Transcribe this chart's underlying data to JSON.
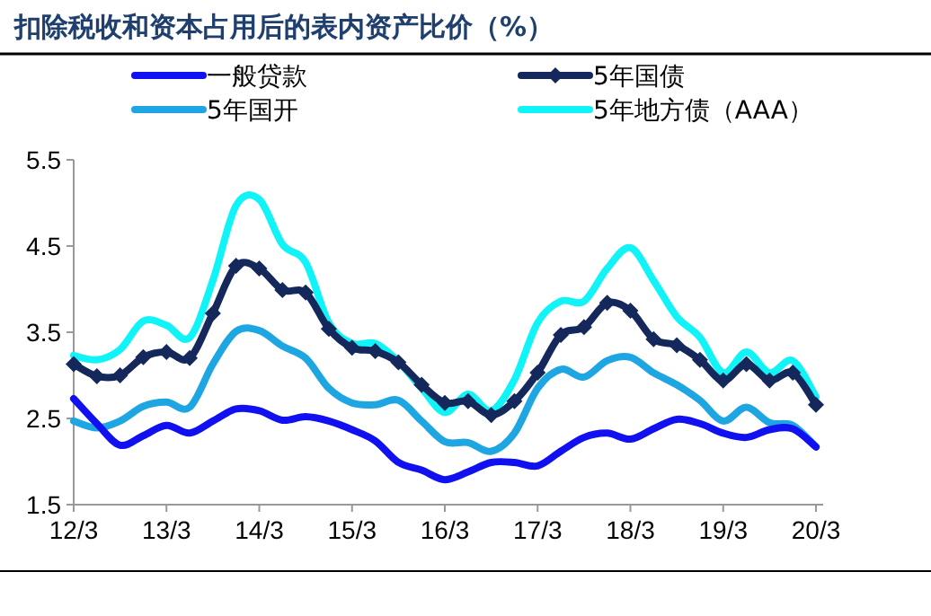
{
  "chart_data": {
    "type": "line",
    "title": "扣除税收和资本占用后的表内资产比价（%）",
    "categories": [
      "12/3",
      null,
      null,
      null,
      "13/3",
      null,
      null,
      null,
      "14/3",
      null,
      null,
      null,
      "15/3",
      null,
      null,
      null,
      "16/3",
      null,
      null,
      null,
      "17/3",
      null,
      null,
      null,
      "18/3",
      null,
      null,
      null,
      "19/3",
      null,
      null,
      null,
      "20/3"
    ],
    "series": [
      {
        "name": "一般贷款",
        "color": "#1010f0",
        "values": [
          2.73,
          2.44,
          2.19,
          2.3,
          2.42,
          2.33,
          2.47,
          2.61,
          2.59,
          2.48,
          2.52,
          2.47,
          2.37,
          2.24,
          1.99,
          1.9,
          1.79,
          1.88,
          1.99,
          1.99,
          1.95,
          2.12,
          2.28,
          2.33,
          2.26,
          2.38,
          2.49,
          2.44,
          2.33,
          2.28,
          2.37,
          2.38,
          2.17
        ]
      },
      {
        "name": "5年国债",
        "color": "#14285c",
        "marker": "diamond",
        "values": [
          3.13,
          2.99,
          3.0,
          3.21,
          3.27,
          3.2,
          3.72,
          4.27,
          4.24,
          3.99,
          3.96,
          3.54,
          3.32,
          3.28,
          3.15,
          2.89,
          2.68,
          2.7,
          2.54,
          2.7,
          3.03,
          3.47,
          3.56,
          3.84,
          3.75,
          3.42,
          3.35,
          3.18,
          2.94,
          3.13,
          2.94,
          3.03,
          2.66
        ]
      },
      {
        "name": "5年国开",
        "color": "#1ea6e2",
        "values": [
          2.47,
          2.39,
          2.47,
          2.64,
          2.69,
          2.63,
          3.13,
          3.51,
          3.52,
          3.34,
          3.2,
          2.85,
          2.68,
          2.66,
          2.71,
          2.47,
          2.23,
          2.22,
          2.12,
          2.33,
          2.85,
          3.07,
          2.98,
          3.17,
          3.21,
          3.03,
          2.89,
          2.71,
          2.47,
          2.63,
          2.45,
          2.42,
          2.17
        ]
      },
      {
        "name": "5年地方债（AAA）",
        "color": "#10f4f8",
        "values": [
          3.23,
          3.18,
          3.3,
          3.63,
          3.58,
          3.44,
          4.1,
          4.97,
          5.04,
          4.52,
          4.31,
          3.61,
          3.37,
          3.37,
          3.16,
          2.85,
          2.57,
          2.78,
          2.59,
          2.95,
          3.61,
          3.86,
          3.86,
          4.24,
          4.48,
          4.1,
          3.68,
          3.44,
          3.03,
          3.27,
          3.03,
          3.17,
          2.75
        ]
      }
    ],
    "ylim": [
      1.5,
      5.5
    ],
    "yticks": [
      1.5,
      2.5,
      3.5,
      4.5,
      5.5
    ],
    "grid": false,
    "legend": "top",
    "line_style": "solid"
  }
}
